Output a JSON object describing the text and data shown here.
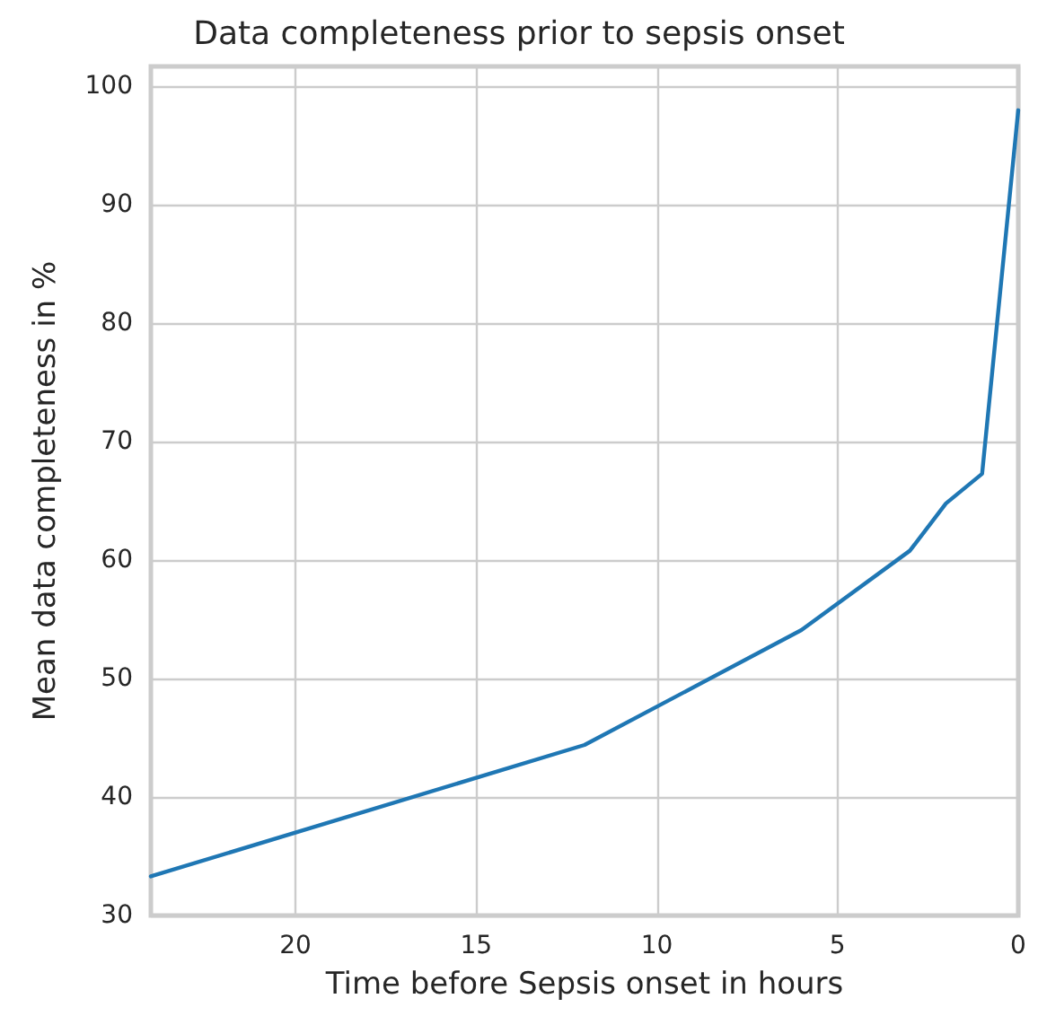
{
  "chart_data": {
    "type": "line",
    "title": "Data completeness prior to sepsis onset",
    "xlabel": "Time before Sepsis onset in hours",
    "ylabel": "Mean data completeness in %",
    "x": [
      24,
      12,
      6,
      3,
      2,
      1,
      0
    ],
    "series": [
      {
        "color": "#1f77b4",
        "values": [
          33.3,
          44.4,
          54.1,
          60.8,
          64.8,
          67.3,
          98
        ]
      }
    ],
    "xlim": [
      24,
      0
    ],
    "xticks": [
      20,
      15,
      10,
      5,
      0
    ],
    "ylim": [
      30,
      101.7
    ],
    "yticks": [
      30,
      40,
      50,
      60,
      70,
      80,
      90,
      100
    ],
    "grid": true,
    "marker": "none",
    "line_style": "solid"
  }
}
